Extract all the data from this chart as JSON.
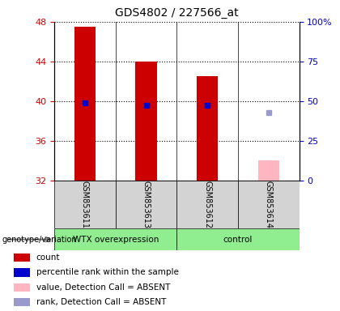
{
  "title": "GDS4802 / 227566_at",
  "samples": [
    "GSM853611",
    "GSM853613",
    "GSM853612",
    "GSM853614"
  ],
  "groups": [
    "WTX overexpression",
    "WTX overexpression",
    "control",
    "control"
  ],
  "bar_bottom": 32,
  "ylim_left": [
    32,
    48
  ],
  "ylim_right": [
    0,
    100
  ],
  "yticks_left": [
    32,
    36,
    40,
    44,
    48
  ],
  "yticks_right": [
    0,
    25,
    50,
    75,
    100
  ],
  "red_bar_tops": [
    47.5,
    44.0,
    42.5,
    null
  ],
  "pink_bar_tops": [
    null,
    null,
    null,
    34.0
  ],
  "blue_sq_vals": [
    39.8,
    39.6,
    39.6,
    null
  ],
  "lavender_sq_vals": [
    null,
    null,
    null,
    38.8
  ],
  "red_color": "#CC0000",
  "pink_color": "#FFB6C1",
  "blue_color": "#0000CC",
  "lavender_color": "#9999CC",
  "left_tick_color": "#CC0000",
  "right_tick_color": "#0000CC",
  "group_label": "genotype/variation",
  "group_spans": [
    {
      "label": "WTX overexpression",
      "start": 0,
      "end": 1,
      "color": "#90EE90"
    },
    {
      "label": "control",
      "start": 2,
      "end": 3,
      "color": "#90EE90"
    }
  ],
  "legend_items": [
    {
      "label": "count",
      "color": "#CC0000"
    },
    {
      "label": "percentile rank within the sample",
      "color": "#0000CC"
    },
    {
      "label": "value, Detection Call = ABSENT",
      "color": "#FFB6C1"
    },
    {
      "label": "rank, Detection Call = ABSENT",
      "color": "#9999CC"
    }
  ],
  "bar_width": 0.35,
  "gray_box_color": "#D3D3D3",
  "light_green": "#90EE90"
}
